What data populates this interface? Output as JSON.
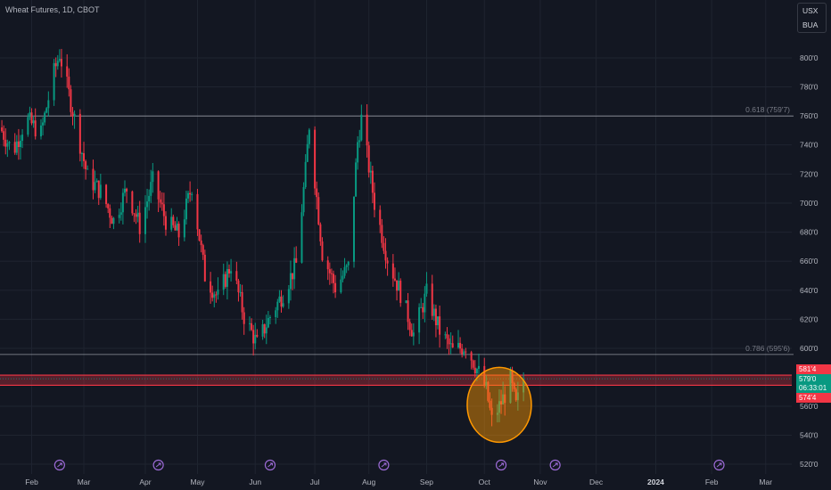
{
  "header": {
    "title": "Wheat Futures, 1D, CBOT"
  },
  "unit_box": {
    "currency": "USX",
    "unit": "BUA"
  },
  "price_tags": {
    "high": "581'4",
    "last_price": "579'0",
    "countdown": "06:33:01",
    "low": "574'4"
  },
  "colors": {
    "background": "#131722",
    "up": "#089981",
    "down": "#f23645",
    "fib_line": "#b2b5be",
    "zone_fill": "#f23645",
    "highlight_circle": "#ff9800",
    "grid": "#1f2430"
  },
  "chart_data": {
    "type": "candlestick",
    "title": "Wheat Futures, 1D, CBOT",
    "y_range": [
      514,
      840
    ],
    "y_ticks": [
      {
        "value": 800,
        "label": "800'0"
      },
      {
        "value": 780,
        "label": "780'0"
      },
      {
        "value": 760,
        "label": "760'0"
      },
      {
        "value": 740,
        "label": "740'0"
      },
      {
        "value": 720,
        "label": "720'0"
      },
      {
        "value": 700,
        "label": "700'0"
      },
      {
        "value": 680,
        "label": "680'0"
      },
      {
        "value": 660,
        "label": "660'0"
      },
      {
        "value": 640,
        "label": "640'0"
      },
      {
        "value": 620,
        "label": "620'0"
      },
      {
        "value": 600,
        "label": "600'0"
      },
      {
        "value": 560,
        "label": "560'0"
      },
      {
        "value": 540,
        "label": "540'0"
      },
      {
        "value": 520,
        "label": "520'0"
      }
    ],
    "x_range": [
      "2023-01-15",
      "2024-03-15"
    ],
    "x_ticks": [
      {
        "date": "2023-02-01",
        "label": "Feb"
      },
      {
        "date": "2023-03-01",
        "label": "Mar"
      },
      {
        "date": "2023-04-03",
        "label": "Apr"
      },
      {
        "date": "2023-05-01",
        "label": "May"
      },
      {
        "date": "2023-06-01",
        "label": "Jun"
      },
      {
        "date": "2023-07-03",
        "label": "Jul"
      },
      {
        "date": "2023-08-01",
        "label": "Aug"
      },
      {
        "date": "2023-09-01",
        "label": "Sep"
      },
      {
        "date": "2023-10-02",
        "label": "Oct"
      },
      {
        "date": "2023-11-01",
        "label": "Nov"
      },
      {
        "date": "2023-12-01",
        "label": "Dec"
      },
      {
        "date": "2024-01-02",
        "label": "2024"
      },
      {
        "date": "2024-02-01",
        "label": "Feb"
      },
      {
        "date": "2024-03-01",
        "label": "Mar"
      }
    ],
    "price_path": [
      [
        "2023-01-15",
        752
      ],
      [
        "2023-01-22",
        735
      ],
      [
        "2023-01-29",
        758
      ],
      [
        "2023-02-06",
        748
      ],
      [
        "2023-02-13",
        790
      ],
      [
        "2023-02-16",
        803
      ],
      [
        "2023-02-24",
        758
      ],
      [
        "2023-03-03",
        718
      ],
      [
        "2023-03-10",
        708
      ],
      [
        "2023-03-17",
        688
      ],
      [
        "2023-03-24",
        710
      ],
      [
        "2023-03-31",
        684
      ],
      [
        "2023-04-07",
        715
      ],
      [
        "2023-04-14",
        688
      ],
      [
        "2023-04-21",
        678
      ],
      [
        "2023-04-28",
        712
      ],
      [
        "2023-05-05",
        650
      ],
      [
        "2023-05-12",
        635
      ],
      [
        "2023-05-19",
        658
      ],
      [
        "2023-05-26",
        622
      ],
      [
        "2023-06-02",
        603
      ],
      [
        "2023-06-09",
        622
      ],
      [
        "2023-06-16",
        638
      ],
      [
        "2023-06-23",
        658
      ],
      [
        "2023-06-28",
        722
      ],
      [
        "2023-06-30",
        754
      ],
      [
        "2023-07-07",
        666
      ],
      [
        "2023-07-14",
        642
      ],
      [
        "2023-07-21",
        656
      ],
      [
        "2023-07-26",
        742
      ],
      [
        "2023-07-28",
        758
      ],
      [
        "2023-08-04",
        700
      ],
      [
        "2023-08-11",
        662
      ],
      [
        "2023-08-18",
        638
      ],
      [
        "2023-08-25",
        610
      ],
      [
        "2023-09-01",
        638
      ],
      [
        "2023-09-08",
        612
      ],
      [
        "2023-09-15",
        598
      ],
      [
        "2023-09-22",
        602
      ],
      [
        "2023-09-29",
        583
      ],
      [
        "2023-10-03",
        571
      ],
      [
        "2023-10-06",
        550
      ],
      [
        "2023-10-10",
        560
      ],
      [
        "2023-10-13",
        568
      ],
      [
        "2023-10-16",
        578
      ],
      [
        "2023-10-19",
        560
      ],
      [
        "2023-10-23",
        579
      ]
    ],
    "fib_levels": [
      {
        "value": 759.875,
        "label": "0.618 (759'7)"
      },
      {
        "value": 595.75,
        "label": "0.786 (595'6)"
      }
    ],
    "zone": {
      "top": 581.5,
      "bottom": 574.5,
      "last_price": 579
    },
    "highlight": {
      "center_date": "2023-10-10",
      "center_price": 561,
      "note": "circled pullback low"
    },
    "event_markers": [
      "2023-02-16",
      "2023-04-10",
      "2023-06-09",
      "2023-08-09",
      "2023-10-11",
      "2023-11-09",
      "2024-02-05"
    ]
  }
}
